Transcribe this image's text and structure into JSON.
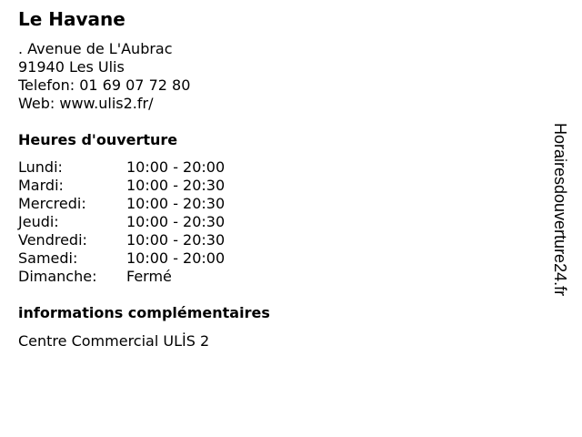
{
  "title": "Le Havane",
  "address": {
    "street": ". Avenue de L'Aubrac",
    "city": "91940 Les Ulis",
    "phone": "Telefon: 01 69 07 72 80",
    "web": "Web: www.ulis2.fr/"
  },
  "hours_heading": "Heures d'ouverture",
  "hours": [
    {
      "day": "Lundi:",
      "time": "10:00 - 20:00"
    },
    {
      "day": "Mardi:",
      "time": "10:00 - 20:30"
    },
    {
      "day": "Mercredi:",
      "time": "10:00 - 20:30"
    },
    {
      "day": "Jeudi:",
      "time": "10:00 - 20:30"
    },
    {
      "day": "Vendredi:",
      "time": "10:00 - 20:30"
    },
    {
      "day": "Samedi:",
      "time": "10:00 - 20:00"
    },
    {
      "day": "Dimanche:",
      "time": "Fermé"
    }
  ],
  "info_heading": "informations complémentaires",
  "info_text": "Centre Commercial ULİS 2",
  "watermark": "Horairesdouverture24.fr"
}
